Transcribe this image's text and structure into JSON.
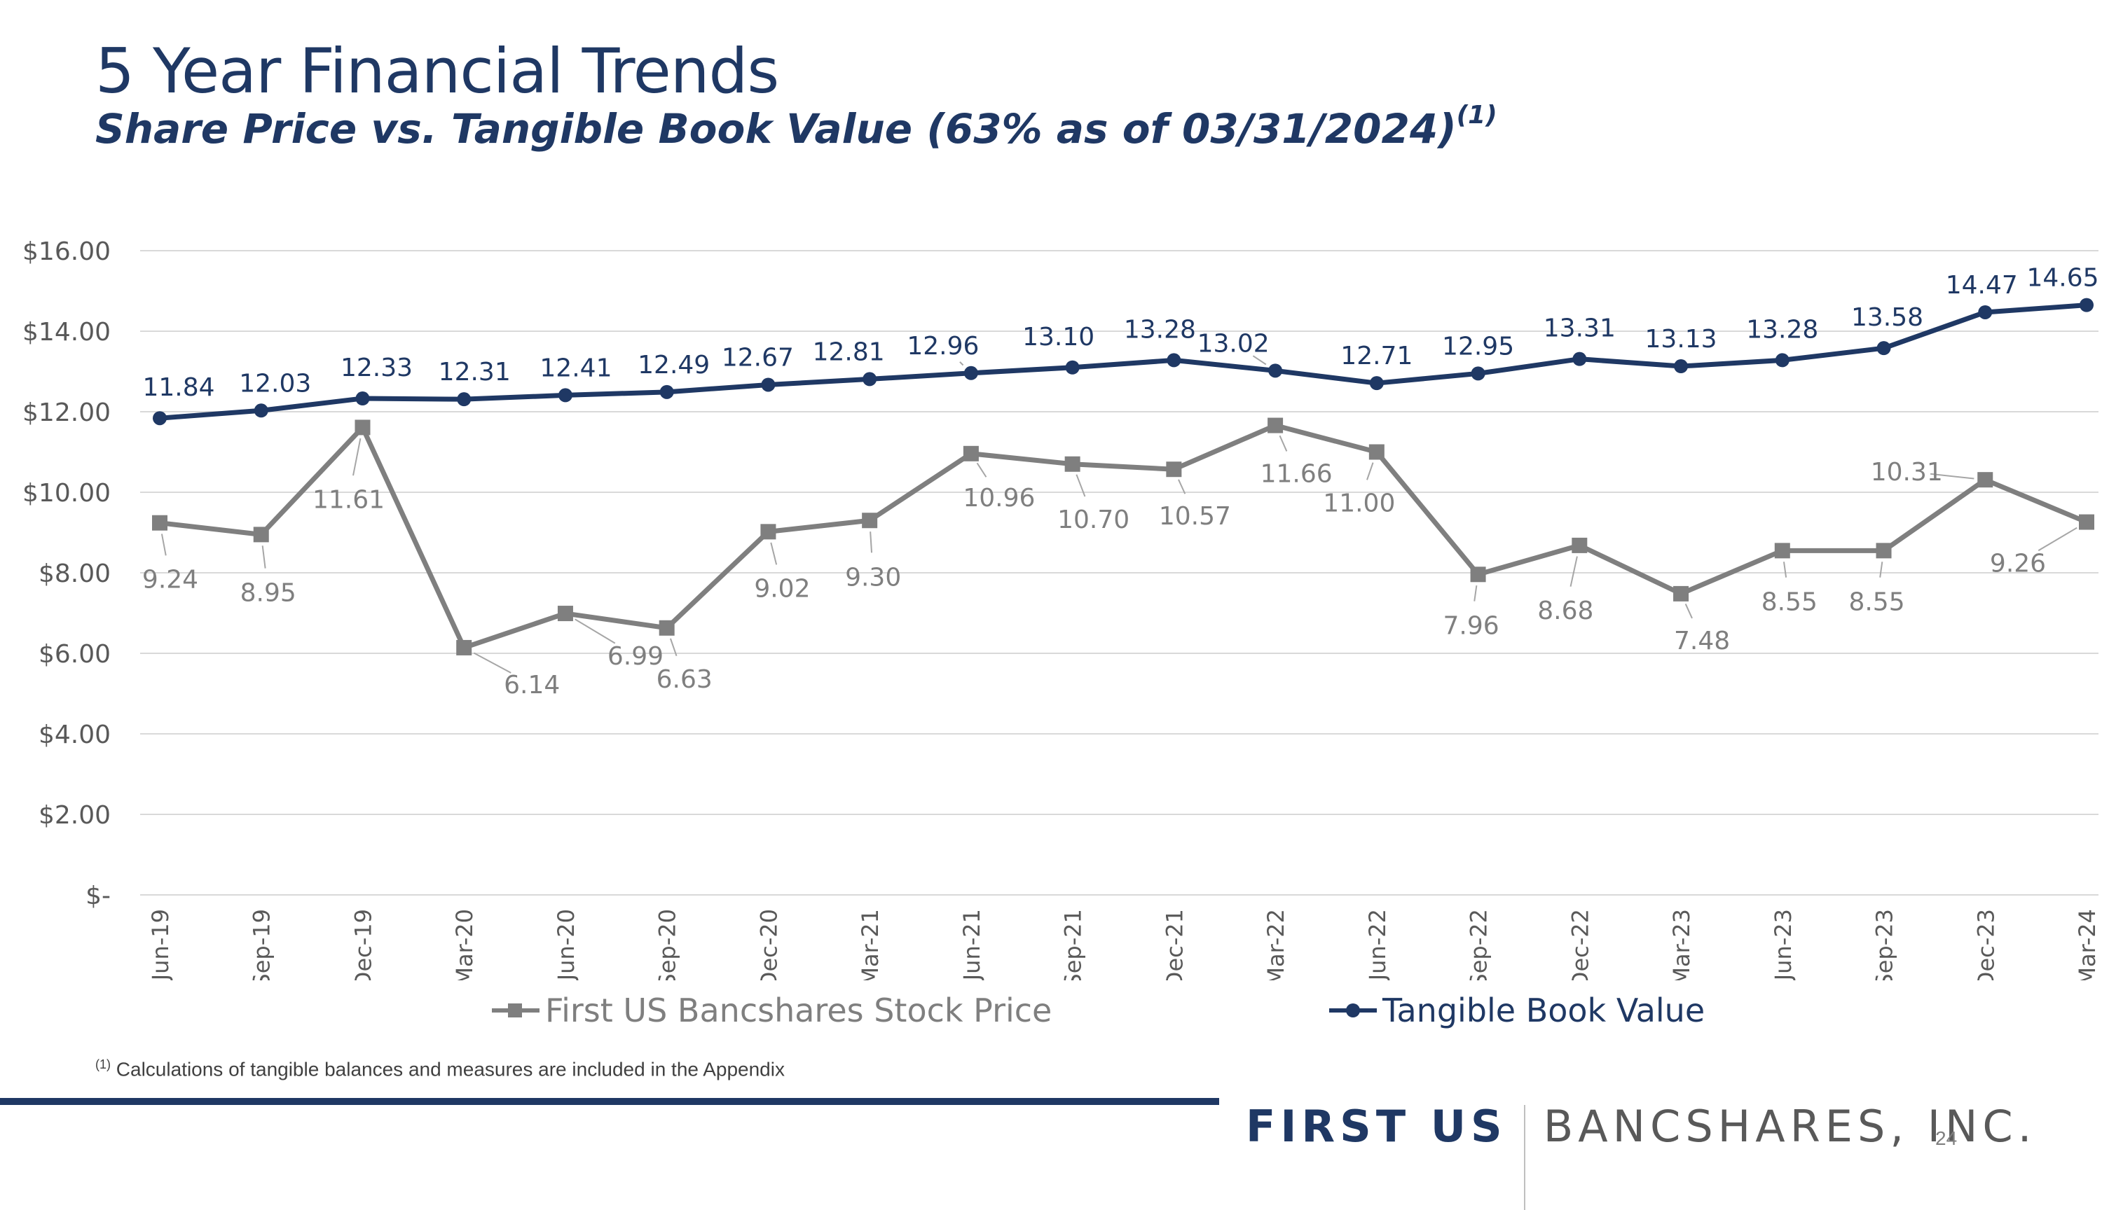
{
  "slide": {
    "title": "5 Year Financial Trends",
    "subtitle": "Share Price vs. Tangible Book Value (63% as of 03/31/2024)",
    "subtitle_ref": "(1)",
    "footnote_ref": "(1)",
    "footnote": "Calculations of tangible balances and measures are included in the Appendix",
    "brand_bold": "FIRST US",
    "brand_light": "BANCSHARES, INC.",
    "page_number": "24"
  },
  "colors": {
    "navy": "#1f3864",
    "gray": "#7f7f7f",
    "gridline": "#d9d9d9"
  },
  "icons": {
    "price_marker": "square-marker-icon",
    "tbv_marker": "circle-marker-icon"
  },
  "chart_data": {
    "type": "line",
    "title": "",
    "xlabel": "",
    "ylabel": "",
    "ylim": [
      0,
      16
    ],
    "y_ticks": [
      0,
      2,
      4,
      6,
      8,
      10,
      12,
      14,
      16
    ],
    "y_tick_labels": [
      "$-",
      "$2.00",
      "$4.00",
      "$6.00",
      "$8.00",
      "$10.00",
      "$12.00",
      "$14.00",
      "$16.00"
    ],
    "grid": true,
    "legend_position": "bottom",
    "categories": [
      "Jun-19",
      "Sep-19",
      "Dec-19",
      "Mar-20",
      "Jun-20",
      "Sep-20",
      "Dec-20",
      "Mar-21",
      "Jun-21",
      "Sep-21",
      "Dec-21",
      "Mar-22",
      "Jun-22",
      "Sep-22",
      "Dec-22",
      "Mar-23",
      "Jun-23",
      "Sep-23",
      "Dec-23",
      "Mar-24"
    ],
    "series": [
      {
        "name": "First US Bancshares Stock Price",
        "marker": "square",
        "color": "#7f7f7f",
        "values": [
          9.24,
          8.95,
          11.61,
          6.14,
          6.99,
          6.63,
          9.02,
          9.3,
          10.96,
          10.7,
          10.57,
          11.66,
          11.0,
          7.96,
          8.68,
          7.48,
          8.55,
          8.55,
          10.31,
          9.26
        ],
        "labels": [
          "9.24",
          "8.95",
          "11.61",
          "6.14",
          "6.99",
          "6.63",
          "9.02",
          "9.30",
          "10.96",
          "10.70",
          "10.57",
          "11.66",
          "11.00",
          "7.96",
          "8.68",
          "7.48",
          "8.55",
          "8.55",
          "10.31",
          "9.26"
        ]
      },
      {
        "name": "Tangible Book Value",
        "marker": "circle",
        "color": "#1f3864",
        "values": [
          11.84,
          12.03,
          12.33,
          12.31,
          12.41,
          12.49,
          12.67,
          12.81,
          12.96,
          13.1,
          13.28,
          13.02,
          12.71,
          12.95,
          13.31,
          13.13,
          13.28,
          13.58,
          14.47,
          14.65
        ],
        "labels": [
          "11.84",
          "12.03",
          "12.33",
          "12.31",
          "12.41",
          "12.49",
          "12.67",
          "12.81",
          "12.96",
          "13.10",
          "13.28",
          "13.02",
          "12.71",
          "12.95",
          "13.31",
          "13.13",
          "13.28",
          "13.58",
          "14.47",
          "14.65"
        ]
      }
    ]
  }
}
